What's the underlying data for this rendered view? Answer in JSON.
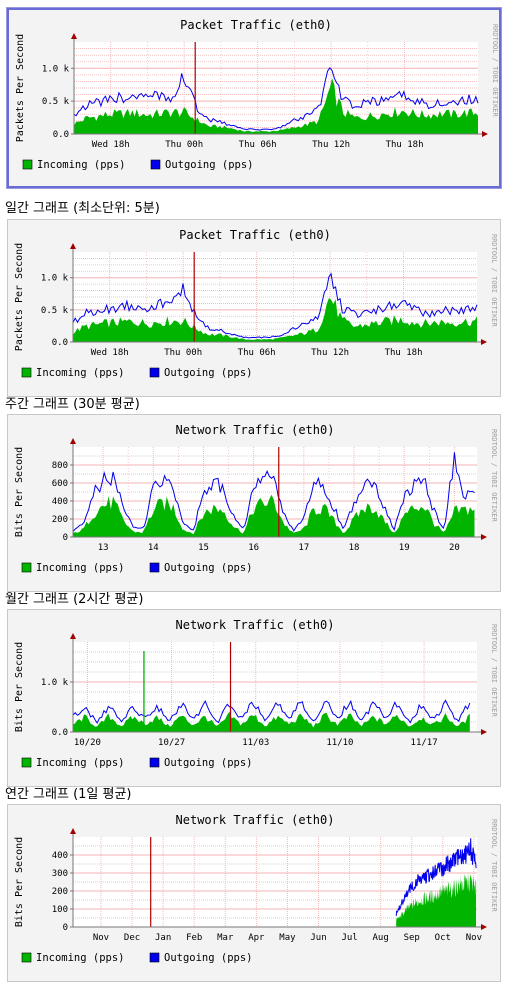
{
  "colors": {
    "incoming": "#00b400",
    "outgoing": "#0000ee",
    "grid": "#f3b3b3",
    "axis": "#777777",
    "marker": "#b00000",
    "plot_bg": "#ffffff",
    "panel_bg": "#f3f3f3"
  },
  "captions": [
    "일간 그래프 (최소단위: 5분)",
    "주간 그래프 (30분 평균)",
    "월간 그래프 (2시간 평균)",
    "연간 그래프 (1일 평균)"
  ],
  "chart_data": [
    {
      "type": "area",
      "title": "Packet Traffic (eth0)",
      "ylabel": "Packets Per Second",
      "watermark": "RRDTOOL / TOBI OETIKER",
      "legend": [
        {
          "label": "Incoming (pps)",
          "color": "#00b400"
        },
        {
          "label": "Outgoing (pps)",
          "color": "#0000ee"
        }
      ],
      "xlim": [
        0,
        33
      ],
      "ylim": [
        0,
        1400
      ],
      "xticks": [
        {
          "x": 3,
          "label": "Wed 18h"
        },
        {
          "x": 9,
          "label": "Thu 00h"
        },
        {
          "x": 15,
          "label": "Thu 06h"
        },
        {
          "x": 21,
          "label": "Thu 12h"
        },
        {
          "x": 27,
          "label": "Thu 18h"
        }
      ],
      "yticks": [
        {
          "y": 0,
          "label": "0.0"
        },
        {
          "y": 500,
          "label": "0.5 k"
        },
        {
          "y": 1000,
          "label": "1.0 k"
        }
      ],
      "vmarker": 9.9,
      "x": [
        0,
        1,
        2,
        3,
        4,
        5,
        6,
        7,
        8,
        9,
        10,
        11,
        12,
        13,
        14,
        15,
        16,
        17,
        18,
        19,
        20,
        21,
        22,
        23,
        24,
        25,
        26,
        27,
        28,
        29,
        30,
        31,
        32,
        33
      ],
      "series": [
        {
          "name": "Incoming (pps)",
          "values": [
            150,
            240,
            270,
            300,
            310,
            320,
            290,
            310,
            330,
            330,
            220,
            120,
            110,
            80,
            40,
            40,
            40,
            60,
            100,
            140,
            200,
            720,
            330,
            240,
            270,
            300,
            330,
            350,
            300,
            290,
            310,
            300,
            320,
            320
          ]
        },
        {
          "name": "Outgoing (pps)",
          "values": [
            300,
            440,
            480,
            520,
            560,
            580,
            540,
            590,
            570,
            880,
            400,
            220,
            180,
            120,
            70,
            70,
            70,
            110,
            210,
            270,
            400,
            1010,
            520,
            420,
            480,
            500,
            560,
            580,
            500,
            450,
            490,
            470,
            520,
            520
          ]
        }
      ]
    },
    {
      "type": "area",
      "title": "Packet Traffic (eth0)",
      "ylabel": "Packets Per Second",
      "watermark": "RRDTOOL / TOBI OETIKER",
      "legend": [
        {
          "label": "Incoming (pps)",
          "color": "#00b400"
        },
        {
          "label": "Outgoing (pps)",
          "color": "#0000ee"
        }
      ],
      "xlim": [
        0,
        33
      ],
      "ylim": [
        0,
        1400
      ],
      "xticks": [
        {
          "x": 3,
          "label": "Wed 18h"
        },
        {
          "x": 9,
          "label": "Thu 00h"
        },
        {
          "x": 15,
          "label": "Thu 06h"
        },
        {
          "x": 21,
          "label": "Thu 12h"
        },
        {
          "x": 27,
          "label": "Thu 18h"
        }
      ],
      "yticks": [
        {
          "y": 0,
          "label": "0.0"
        },
        {
          "y": 500,
          "label": "0.5 k"
        },
        {
          "y": 1000,
          "label": "1.0 k"
        }
      ],
      "vmarker": 9.9,
      "x": [
        0,
        1,
        2,
        3,
        4,
        5,
        6,
        7,
        8,
        9,
        10,
        11,
        12,
        13,
        14,
        15,
        16,
        17,
        18,
        19,
        20,
        21,
        22,
        23,
        24,
        25,
        26,
        27,
        28,
        29,
        30,
        31,
        32,
        33
      ],
      "series": [
        {
          "name": "Incoming (pps)",
          "values": [
            150,
            240,
            270,
            300,
            310,
            320,
            290,
            310,
            330,
            330,
            220,
            120,
            110,
            80,
            40,
            40,
            40,
            60,
            100,
            140,
            200,
            720,
            330,
            240,
            270,
            300,
            330,
            350,
            300,
            290,
            310,
            300,
            320,
            320
          ]
        },
        {
          "name": "Outgoing (pps)",
          "values": [
            300,
            440,
            480,
            520,
            560,
            580,
            540,
            590,
            570,
            880,
            400,
            220,
            180,
            120,
            70,
            70,
            70,
            110,
            210,
            270,
            400,
            1010,
            520,
            420,
            480,
            500,
            560,
            580,
            500,
            450,
            490,
            470,
            520,
            520
          ]
        }
      ]
    },
    {
      "type": "area",
      "title": "Network Traffic (eth0)",
      "ylabel": "Bits Per Second",
      "watermark": "RRDTOOL / TOBI OETIKER",
      "legend": [
        {
          "label": "Incoming (pps)",
          "color": "#00b400"
        },
        {
          "label": "Outgoing (pps)",
          "color": "#0000ee"
        }
      ],
      "xlim": [
        12.4,
        20.45
      ],
      "ylim": [
        0,
        1000
      ],
      "xticks": [
        {
          "x": 13,
          "label": "13"
        },
        {
          "x": 14,
          "label": "14"
        },
        {
          "x": 15,
          "label": "15"
        },
        {
          "x": 16,
          "label": "16"
        },
        {
          "x": 17,
          "label": "17"
        },
        {
          "x": 18,
          "label": "18"
        },
        {
          "x": 19,
          "label": "19"
        },
        {
          "x": 20,
          "label": "20"
        }
      ],
      "yticks": [
        {
          "y": 0,
          "label": "0"
        },
        {
          "y": 200,
          "label": "200"
        },
        {
          "y": 400,
          "label": "400"
        },
        {
          "y": 600,
          "label": "600"
        },
        {
          "y": 800,
          "label": "800"
        }
      ],
      "vmarker": 16.5,
      "x": [
        12.4,
        12.6,
        12.8,
        13.0,
        13.2,
        13.4,
        13.6,
        13.8,
        14.0,
        14.2,
        14.4,
        14.6,
        14.8,
        15.0,
        15.2,
        15.4,
        15.6,
        15.8,
        16.0,
        16.2,
        16.4,
        16.6,
        16.8,
        17.0,
        17.2,
        17.4,
        17.6,
        17.8,
        18.0,
        18.2,
        18.4,
        18.6,
        18.8,
        19.0,
        19.2,
        19.4,
        19.6,
        19.8,
        20.0,
        20.2,
        20.4
      ],
      "series": [
        {
          "name": "Incoming (pps)",
          "values": [
            40,
            80,
            260,
            350,
            390,
            180,
            60,
            50,
            300,
            380,
            330,
            80,
            40,
            260,
            320,
            300,
            120,
            40,
            320,
            380,
            400,
            150,
            40,
            90,
            300,
            320,
            180,
            40,
            200,
            320,
            330,
            180,
            40,
            240,
            330,
            350,
            150,
            40,
            280,
            300,
            320
          ]
        },
        {
          "name": "Outgoing (pps)",
          "values": [
            60,
            140,
            470,
            620,
            640,
            350,
            100,
            90,
            540,
            640,
            560,
            150,
            80,
            480,
            600,
            540,
            220,
            80,
            560,
            650,
            620,
            260,
            70,
            200,
            600,
            560,
            320,
            80,
            380,
            580,
            560,
            320,
            80,
            440,
            580,
            600,
            280,
            80,
            900,
            470,
            460
          ]
        }
      ]
    },
    {
      "type": "area",
      "title": "Network Traffic (eth0)",
      "ylabel": "Bits Per Second",
      "watermark": "RRDTOOL / TOBI OETIKER",
      "legend": [
        {
          "label": "Incoming (pps)",
          "color": "#00b400"
        },
        {
          "label": "Outgoing (pps)",
          "color": "#0000ee"
        }
      ],
      "xlim": [
        0,
        33.6
      ],
      "ylim": [
        0,
        1800
      ],
      "xticks": [
        {
          "x": 1.2,
          "label": "10/20"
        },
        {
          "x": 8.2,
          "label": "10/27"
        },
        {
          "x": 15.2,
          "label": "11/03"
        },
        {
          "x": 22.2,
          "label": "11/10"
        },
        {
          "x": 29.2,
          "label": "11/17"
        }
      ],
      "yticks": [
        {
          "y": 0,
          "label": "0.0"
        },
        {
          "y": 1000,
          "label": "1.0 k"
        }
      ],
      "vmarker": 13.1,
      "spike": {
        "x": 5.9,
        "y": 1620
      },
      "x": [
        0,
        1,
        2,
        3,
        4,
        5,
        6,
        7,
        8,
        9,
        10,
        11,
        12,
        13,
        14,
        15,
        16,
        17,
        18,
        19,
        20,
        21,
        22,
        23,
        24,
        25,
        26,
        27,
        28,
        29,
        30,
        31,
        32,
        33
      ],
      "series": [
        {
          "name": "Incoming (pps)",
          "values": [
            150,
            300,
            100,
            320,
            120,
            300,
            160,
            290,
            110,
            320,
            140,
            310,
            100,
            330,
            150,
            340,
            120,
            300,
            160,
            320,
            110,
            340,
            150,
            320,
            120,
            300,
            160,
            330,
            110,
            300,
            140,
            320,
            110,
            300
          ]
        },
        {
          "name": "Outgoing (pps)",
          "values": [
            300,
            500,
            180,
            530,
            200,
            490,
            280,
            520,
            200,
            560,
            240,
            540,
            180,
            580,
            250,
            600,
            220,
            560,
            280,
            620,
            200,
            640,
            260,
            600,
            220,
            580,
            280,
            590,
            200,
            560,
            240,
            560,
            200,
            600
          ]
        }
      ]
    },
    {
      "type": "area",
      "title": "Network Traffic (eth0)",
      "ylabel": "Bits Per Second",
      "watermark": "RRDTOOL / TOBI OETIKER",
      "legend": [
        {
          "label": "Incoming (pps)",
          "color": "#00b400"
        },
        {
          "label": "Outgoing (pps)",
          "color": "#0000ee"
        }
      ],
      "xlim": [
        0,
        13
      ],
      "ylim": [
        0,
        500
      ],
      "xticks": [
        {
          "x": 0.9,
          "label": "Nov"
        },
        {
          "x": 1.9,
          "label": "Dec"
        },
        {
          "x": 2.9,
          "label": "Jan"
        },
        {
          "x": 3.9,
          "label": "Feb"
        },
        {
          "x": 4.9,
          "label": "Mar"
        },
        {
          "x": 5.9,
          "label": "Apr"
        },
        {
          "x": 6.9,
          "label": "May"
        },
        {
          "x": 7.9,
          "label": "Jun"
        },
        {
          "x": 8.9,
          "label": "Jul"
        },
        {
          "x": 9.9,
          "label": "Aug"
        },
        {
          "x": 10.9,
          "label": "Sep"
        },
        {
          "x": 11.9,
          "label": "Oct"
        },
        {
          "x": 12.9,
          "label": "Nov"
        }
      ],
      "yticks": [
        {
          "y": 0,
          "label": "0"
        },
        {
          "y": 100,
          "label": "100"
        },
        {
          "y": 200,
          "label": "200"
        },
        {
          "y": 300,
          "label": "300"
        },
        {
          "y": 400,
          "label": "400"
        }
      ],
      "vmarker": 2.5,
      "x": [
        10.4,
        10.6,
        10.8,
        11.0,
        11.2,
        11.4,
        11.6,
        11.8,
        12.0,
        12.2,
        12.4,
        12.6,
        12.8,
        12.97
      ],
      "series": [
        {
          "name": "Incoming (pps)",
          "values": [
            40,
            70,
            110,
            130,
            150,
            160,
            170,
            190,
            200,
            210,
            230,
            240,
            250,
            220
          ]
        },
        {
          "name": "Outgoing (pps)",
          "values": [
            70,
            140,
            200,
            240,
            270,
            280,
            300,
            320,
            340,
            360,
            380,
            400,
            430,
            330
          ]
        }
      ]
    }
  ]
}
